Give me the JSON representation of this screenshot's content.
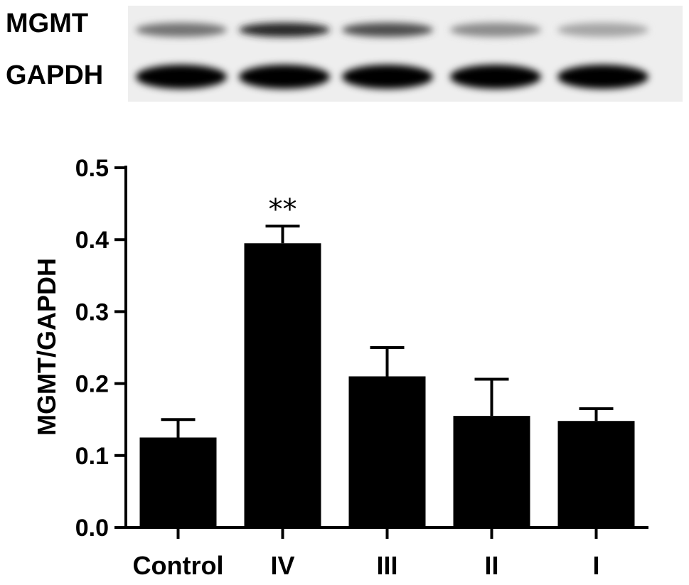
{
  "blot": {
    "rows": [
      {
        "label": "MGMT",
        "intensities": [
          0.55,
          0.85,
          0.7,
          0.45,
          0.35
        ]
      },
      {
        "label": "GAPDH",
        "intensities": [
          1,
          1,
          1,
          1,
          1
        ]
      }
    ]
  },
  "chart_data": {
    "type": "bar",
    "categories": [
      "Control",
      "IV",
      "III",
      "II",
      "I"
    ],
    "series": [
      {
        "values": [
          0.125,
          0.395,
          0.21,
          0.155,
          0.148
        ],
        "errors": [
          0.025,
          0.024,
          0.04,
          0.051,
          0.017
        ]
      }
    ],
    "ylabel": "MGMT/GAPDH",
    "ylim": [
      0,
      0.5
    ],
    "yticks": [
      0,
      0.1,
      0.2,
      0.3,
      0.4,
      0.5
    ],
    "ytick_labels": [
      "0.0",
      "0.1",
      "0.2",
      "0.3",
      "0.4",
      "0.5"
    ],
    "annotations": [
      {
        "category": "IV",
        "text": "**"
      }
    ],
    "grid": false,
    "bar_color": "#000000"
  }
}
